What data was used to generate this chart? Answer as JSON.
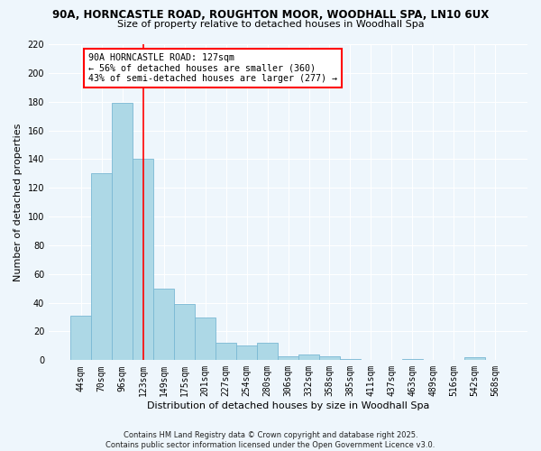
{
  "title1": "90A, HORNCASTLE ROAD, ROUGHTON MOOR, WOODHALL SPA, LN10 6UX",
  "title2": "Size of property relative to detached houses in Woodhall Spa",
  "xlabel": "Distribution of detached houses by size in Woodhall Spa",
  "ylabel": "Number of detached properties",
  "bar_labels": [
    "44sqm",
    "70sqm",
    "96sqm",
    "123sqm",
    "149sqm",
    "175sqm",
    "201sqm",
    "227sqm",
    "254sqm",
    "280sqm",
    "306sqm",
    "332sqm",
    "358sqm",
    "385sqm",
    "411sqm",
    "437sqm",
    "463sqm",
    "489sqm",
    "516sqm",
    "542sqm",
    "568sqm"
  ],
  "bar_values": [
    31,
    130,
    179,
    140,
    50,
    39,
    30,
    12,
    10,
    12,
    3,
    4,
    3,
    1,
    0,
    0,
    1,
    0,
    0,
    2,
    0
  ],
  "bar_color": "#add8e6",
  "bar_edge_color": "#7ab8d4",
  "vline_index": 3,
  "vline_color": "red",
  "annotation_title": "90A HORNCASTLE ROAD: 127sqm",
  "annotation_line1": "← 56% of detached houses are smaller (360)",
  "annotation_line2": "43% of semi-detached houses are larger (277) →",
  "annotation_box_color": "white",
  "annotation_box_edge": "red",
  "ylim": [
    0,
    220
  ],
  "yticks": [
    0,
    20,
    40,
    60,
    80,
    100,
    120,
    140,
    160,
    180,
    200,
    220
  ],
  "footnote1": "Contains HM Land Registry data © Crown copyright and database right 2025.",
  "footnote2": "Contains public sector information licensed under the Open Government Licence v3.0.",
  "bg_color": "#eef6fc"
}
